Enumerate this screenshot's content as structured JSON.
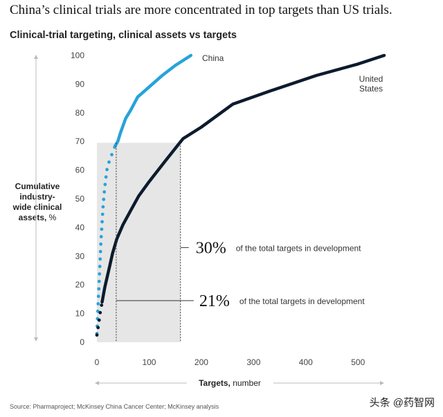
{
  "header": {
    "headline": "China’s clinical trials are more concentrated in top targets than US trials.",
    "subtitle": "Clinical-trial targeting, clinical assets vs targets"
  },
  "footer": {
    "source": "Source: Pharmaproject; McKinsey China Cancer Center; McKinsey analysis",
    "watermark": "头条 @药智网"
  },
  "chart_data": {
    "type": "line",
    "title": "Clinical-trial targeting, clinical assets vs targets",
    "xlabel_bold": "Targets,",
    "xlabel_rest": " number",
    "ylabel_bold": [
      "Cumulative",
      "industry-",
      "wide clinical",
      "assets,"
    ],
    "ylabel_rest": " %",
    "xlim": [
      0,
      550
    ],
    "ylim": [
      0,
      100
    ],
    "x_ticks": [
      0,
      100,
      200,
      300,
      400,
      500
    ],
    "y_ticks": [
      0,
      10,
      20,
      30,
      40,
      50,
      60,
      70,
      80,
      90,
      100
    ],
    "colors": {
      "china": "#27a3d9",
      "us": "#0d1b2e",
      "band": "#e6e6e6"
    },
    "series": [
      {
        "name": "China",
        "points": [
          [
            0,
            3
          ],
          [
            1,
            8
          ],
          [
            2,
            12
          ],
          [
            3,
            16
          ],
          [
            4,
            20
          ],
          [
            5,
            24
          ],
          [
            6,
            28
          ],
          [
            7,
            32
          ],
          [
            8,
            36
          ],
          [
            9,
            39
          ],
          [
            10,
            42
          ],
          [
            11,
            45
          ],
          [
            12,
            48
          ],
          [
            13,
            50
          ],
          [
            14,
            52
          ],
          [
            15,
            54
          ],
          [
            17,
            57
          ],
          [
            19,
            60
          ],
          [
            22,
            62
          ],
          [
            25,
            64
          ],
          [
            30,
            66
          ],
          [
            35,
            68.5
          ],
          [
            40,
            70
          ],
          [
            45,
            73
          ],
          [
            55,
            78
          ],
          [
            65,
            81
          ],
          [
            78,
            85.5
          ],
          [
            100,
            89
          ],
          [
            125,
            93
          ],
          [
            150,
            96.5
          ],
          [
            180,
            100
          ]
        ],
        "dotted_until_x": 35
      },
      {
        "name": "United States",
        "label_lines": [
          "United",
          "States"
        ],
        "points": [
          [
            0,
            2.5
          ],
          [
            3,
            6
          ],
          [
            6,
            10
          ],
          [
            10,
            14
          ],
          [
            15,
            19
          ],
          [
            20,
            23
          ],
          [
            25,
            27
          ],
          [
            30,
            31
          ],
          [
            38,
            36
          ],
          [
            50,
            41
          ],
          [
            65,
            46
          ],
          [
            80,
            51
          ],
          [
            100,
            56
          ],
          [
            130,
            63
          ],
          [
            165,
            71
          ],
          [
            200,
            75
          ],
          [
            260,
            83
          ],
          [
            330,
            87.5
          ],
          [
            420,
            93
          ],
          [
            500,
            97
          ],
          [
            550,
            100
          ]
        ],
        "dotted_until_x": 10
      }
    ],
    "band": {
      "x_end": 160,
      "y_top": 69.5
    },
    "annotations": [
      {
        "x": 160,
        "y": 33,
        "percent": "30%",
        "text": "of the total targets in development"
      },
      {
        "x": 37,
        "y": 14.5,
        "percent": "21%",
        "text": "of the total targets in development"
      }
    ]
  }
}
